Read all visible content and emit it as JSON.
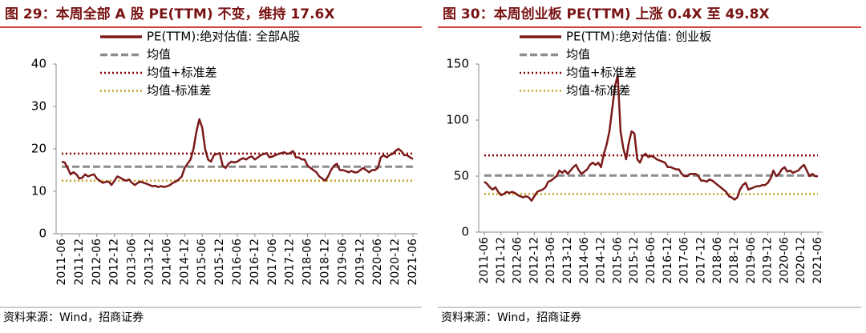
{
  "chart_data": [
    {
      "type": "line",
      "title": "图 29：本周全部 A 股 PE(TTM) 不变，维持 17.6X",
      "source": "资料来源：Wind，招商证券",
      "categories": [
        "2011-06",
        null,
        null,
        null,
        null,
        null,
        "2011-12",
        null,
        null,
        null,
        null,
        null,
        "2012-06",
        null,
        null,
        null,
        null,
        null,
        "2012-12",
        null,
        null,
        null,
        null,
        null,
        "2013-06",
        null,
        null,
        null,
        null,
        null,
        "2013-12",
        null,
        null,
        null,
        null,
        null,
        "2014-06",
        null,
        null,
        null,
        null,
        null,
        "2014-12",
        null,
        null,
        null,
        null,
        null,
        "2015-06",
        null,
        null,
        null,
        null,
        null,
        "2015-12",
        null,
        null,
        null,
        null,
        null,
        "2016-06",
        null,
        null,
        null,
        null,
        null,
        "2016-12",
        null,
        null,
        null,
        null,
        null,
        "2017-06",
        null,
        null,
        null,
        null,
        null,
        "2017-12",
        null,
        null,
        null,
        null,
        null,
        "2018-06",
        null,
        null,
        null,
        null,
        null,
        "2018-12",
        null,
        null,
        null,
        null,
        null,
        "2019-06",
        null,
        null,
        null,
        null,
        null,
        "2019-12",
        null,
        null,
        null,
        null,
        null,
        "2020-06",
        null,
        null,
        null,
        null,
        null,
        "2020-12",
        null,
        null,
        null,
        null,
        null,
        "2021-06"
      ],
      "series": [
        {
          "name": "PE(TTM):绝对估值: 全部A股",
          "color": "#7b1a1a",
          "values": [
            17,
            16.8,
            15.5,
            14,
            14.5,
            14,
            13,
            13.2,
            14,
            13.5,
            13.8,
            14,
            13,
            12.5,
            12,
            12.2,
            12.3,
            11.5,
            12.5,
            13.5,
            13.2,
            12.8,
            12.5,
            12.8,
            12,
            11.5,
            12,
            12.3,
            12,
            11.8,
            11.5,
            11.2,
            11.3,
            11,
            11.2,
            11,
            11.2,
            11.5,
            12,
            12.3,
            12.8,
            13.5,
            15.5,
            16.5,
            17.5,
            20,
            24,
            27,
            25,
            20,
            17.5,
            17,
            18.5,
            18.8,
            19,
            16,
            15.5,
            16.5,
            17,
            16.8,
            17,
            17.5,
            17.8,
            17.5,
            18,
            18.2,
            17.5,
            18,
            18.5,
            18.8,
            19,
            18,
            18.2,
            18.5,
            18.8,
            19,
            19.2,
            18.8,
            19,
            19.5,
            18,
            18,
            17.5,
            17.5,
            16,
            15.5,
            15,
            14.5,
            13.5,
            13,
            12.5,
            13.5,
            15,
            16,
            16.5,
            15,
            15,
            14.8,
            14.5,
            14.8,
            14.5,
            14.5,
            15,
            15.5,
            15,
            14.5,
            15,
            15,
            15.5,
            18,
            18.5,
            18,
            18.5,
            18.8,
            19.5,
            20,
            19.5,
            18.5,
            18.5,
            18,
            17.6
          ]
        }
      ],
      "reference_lines": [
        {
          "name": "均值",
          "color": "#8c8c8c",
          "value": 15.8,
          "dash": "dashed"
        },
        {
          "name": "均值+标准差",
          "color": "#8b0000",
          "value": 18.9,
          "dash": "dotted"
        },
        {
          "name": "均值-标准差",
          "color": "#c9a227",
          "value": 12.5,
          "dash": "dotted"
        }
      ],
      "ylim": [
        0,
        40
      ],
      "yticks": [
        0,
        10,
        20,
        30,
        40
      ]
    },
    {
      "type": "line",
      "title": "图 30：本周创业板 PE(TTM) 上涨 0.4X 至 49.8X",
      "source": "资料来源：Wind，招商证券",
      "categories": [
        "2011-06",
        null,
        null,
        null,
        null,
        null,
        "2011-12",
        null,
        null,
        null,
        null,
        null,
        "2012-06",
        null,
        null,
        null,
        null,
        null,
        "2012-12",
        null,
        null,
        null,
        null,
        null,
        "2013-06",
        null,
        null,
        null,
        null,
        null,
        "2013-12",
        null,
        null,
        null,
        null,
        null,
        "2014-06",
        null,
        null,
        null,
        null,
        null,
        "2014-12",
        null,
        null,
        null,
        null,
        null,
        "2015-06",
        null,
        null,
        null,
        null,
        null,
        "2015-12",
        null,
        null,
        null,
        null,
        null,
        "2016-06",
        null,
        null,
        null,
        null,
        null,
        "2016-12",
        null,
        null,
        null,
        null,
        null,
        "2017-06",
        null,
        null,
        null,
        null,
        null,
        "2017-12",
        null,
        null,
        null,
        null,
        null,
        "2018-06",
        null,
        null,
        null,
        null,
        null,
        "2018-12",
        null,
        null,
        null,
        null,
        null,
        "2019-06",
        null,
        null,
        null,
        null,
        null,
        "2019-12",
        null,
        null,
        null,
        null,
        null,
        "2020-06",
        null,
        null,
        null,
        null,
        null,
        "2020-12",
        null,
        null,
        null,
        null,
        null,
        "2021-06"
      ],
      "series": [
        {
          "name": "PE(TTM):绝对估值: 创业板",
          "color": "#7b1a1a",
          "values": [
            45,
            43,
            40,
            38,
            40,
            36,
            33,
            34,
            36,
            35,
            36,
            35,
            33,
            32,
            31,
            32,
            31,
            28,
            32,
            36,
            37,
            38,
            40,
            45,
            46,
            48,
            50,
            55,
            53,
            55,
            52,
            55,
            58,
            60,
            55,
            52,
            54,
            56,
            60,
            62,
            60,
            62,
            58,
            70,
            78,
            90,
            110,
            130,
            140,
            90,
            75,
            65,
            80,
            90,
            88,
            65,
            62,
            68,
            70,
            67,
            68,
            67,
            65,
            64,
            63,
            62,
            58,
            58,
            57,
            56,
            56,
            52,
            50,
            50,
            52,
            52,
            52,
            50,
            46,
            46,
            45,
            47,
            46,
            44,
            42,
            40,
            38,
            36,
            32,
            31,
            29,
            31,
            38,
            42,
            44,
            38,
            39,
            40,
            41,
            41,
            42,
            42,
            44,
            48,
            55,
            50,
            52,
            56,
            58,
            54,
            55,
            53,
            54,
            55,
            58,
            60,
            55,
            50,
            52,
            50,
            49.8
          ]
        }
      ],
      "reference_lines": [
        {
          "name": "均值",
          "color": "#8c8c8c",
          "value": 50.5,
          "dash": "dashed"
        },
        {
          "name": "均值+标准差",
          "color": "#8b0000",
          "value": 68.5,
          "dash": "dotted"
        },
        {
          "name": "均值-标准差",
          "color": "#c9a227",
          "value": 34,
          "dash": "dotted"
        }
      ],
      "ylim": [
        0,
        150
      ],
      "yticks": [
        0,
        50,
        100,
        150
      ]
    }
  ]
}
